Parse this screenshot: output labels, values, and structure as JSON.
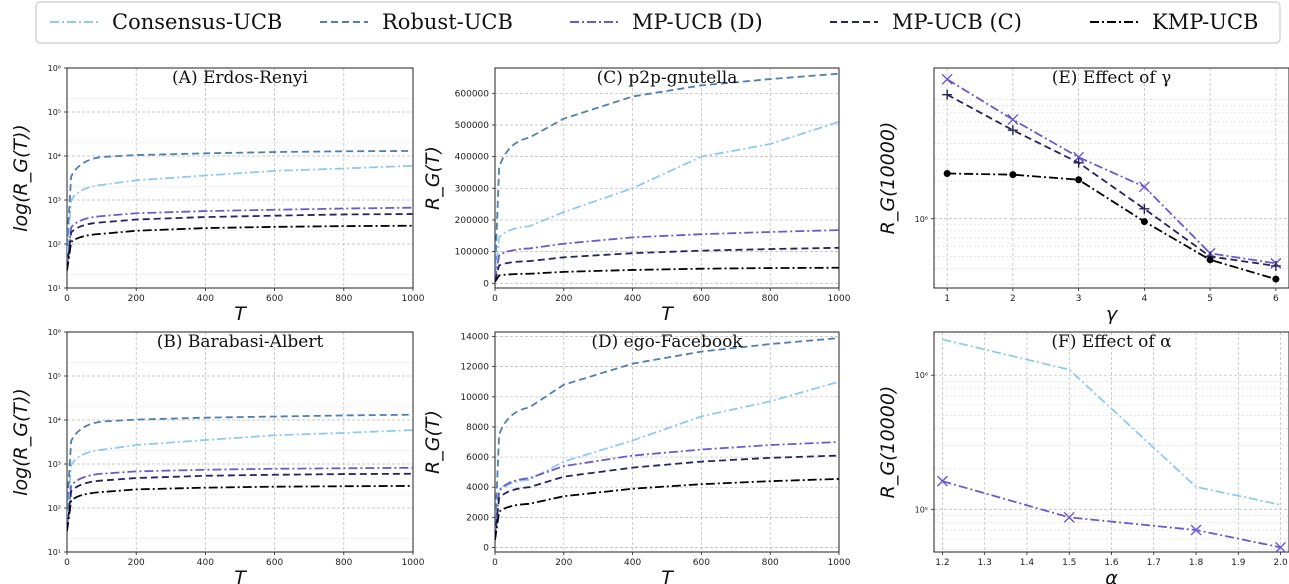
{
  "legend": [
    {
      "name": "Consensus-UCB",
      "color": "#8ecbf0",
      "dash": "dashdot"
    },
    {
      "name": "Robust-UCB",
      "color": "#4f7fae",
      "dash": "dashed"
    },
    {
      "name": "MP-UCB (D)",
      "color": "#6a5acd",
      "dash": "dashdot"
    },
    {
      "name": "MP-UCB (C)",
      "color": "#24245e",
      "dash": "dashed"
    },
    {
      "name": "KMP-UCB",
      "color": "#000000",
      "dash": "dashdot"
    }
  ],
  "chart_data": [
    {
      "id": "A",
      "type": "line",
      "title": "(A) Erdos-Renyi",
      "xlabel": "T",
      "ylabel": "log(R_G(T))",
      "yscale": "log",
      "xlim": [
        0,
        1000
      ],
      "ylim": [
        10,
        1000000
      ],
      "xticks": [
        "0",
        "200",
        "400",
        "600",
        "800",
        "1000"
      ],
      "yticks": [
        "10¹",
        "10²",
        "10³",
        "10⁴",
        "10⁵",
        "10⁶"
      ],
      "x": [
        0,
        100,
        200,
        400,
        600,
        800,
        1000
      ],
      "series": [
        {
          "name": "Consensus-UCB",
          "values": [
            60,
            2200,
            2800,
            3600,
            4600,
            5200,
            6000
          ]
        },
        {
          "name": "Robust-UCB",
          "values": [
            90,
            9500,
            10500,
            11500,
            12300,
            12800,
            13000
          ]
        },
        {
          "name": "MP-UCB (D)",
          "values": [
            30,
            430,
            500,
            560,
            600,
            640,
            670
          ]
        },
        {
          "name": "MP-UCB (C)",
          "values": [
            28,
            310,
            360,
            410,
            440,
            470,
            480
          ]
        },
        {
          "name": "KMP-UCB",
          "values": [
            25,
            170,
            200,
            230,
            245,
            255,
            260
          ]
        }
      ]
    },
    {
      "id": "B",
      "type": "line",
      "title": "(B) Barabasi-Albert",
      "xlabel": "T",
      "ylabel": "log(R_G(T))",
      "yscale": "log",
      "xlim": [
        0,
        1000
      ],
      "ylim": [
        10,
        1000000
      ],
      "xticks": [
        "0",
        "200",
        "400",
        "600",
        "800",
        "1000"
      ],
      "yticks": [
        "10¹",
        "10²",
        "10³",
        "10⁴",
        "10⁵",
        "10⁶"
      ],
      "x": [
        0,
        100,
        200,
        400,
        600,
        800,
        1000
      ],
      "series": [
        {
          "name": "Consensus-UCB",
          "values": [
            60,
            2100,
            2700,
            3500,
            4500,
            5100,
            5900
          ]
        },
        {
          "name": "Robust-UCB",
          "values": [
            90,
            9200,
            10200,
            11300,
            12000,
            12700,
            13200
          ]
        },
        {
          "name": "MP-UCB (D)",
          "values": [
            35,
            600,
            680,
            740,
            780,
            800,
            820
          ]
        },
        {
          "name": "MP-UCB (C)",
          "values": [
            32,
            420,
            480,
            540,
            570,
            590,
            600
          ]
        },
        {
          "name": "KMP-UCB",
          "values": [
            30,
            230,
            265,
            290,
            305,
            312,
            318
          ]
        }
      ]
    },
    {
      "id": "C",
      "type": "line",
      "title": "(C) p2p-gnutella",
      "xlabel": "T",
      "ylabel": "R_G(T)",
      "yscale": "linear",
      "xlim": [
        0,
        1000
      ],
      "ylim": [
        -15000,
        680000
      ],
      "xticks": [
        "0",
        "200",
        "400",
        "600",
        "800",
        "1000"
      ],
      "yticks": [
        "0",
        "100000",
        "200000",
        "300000",
        "400000",
        "500000",
        "600000"
      ],
      "x": [
        0,
        100,
        200,
        400,
        600,
        800,
        1000
      ],
      "series": [
        {
          "name": "Consensus-UCB",
          "values": [
            20000,
            180000,
            225000,
            300000,
            400000,
            440000,
            510000
          ]
        },
        {
          "name": "Robust-UCB",
          "values": [
            30000,
            460000,
            520000,
            590000,
            625000,
            645000,
            662000
          ]
        },
        {
          "name": "MP-UCB (D)",
          "values": [
            10000,
            110000,
            125000,
            145000,
            155000,
            162000,
            168000
          ]
        },
        {
          "name": "MP-UCB (C)",
          "values": [
            8000,
            70000,
            82000,
            95000,
            103000,
            108000,
            112000
          ]
        },
        {
          "name": "KMP-UCB",
          "values": [
            5000,
            30000,
            36000,
            42000,
            46000,
            48000,
            49000
          ]
        }
      ]
    },
    {
      "id": "D",
      "type": "line",
      "title": "(D) ego-Facebook",
      "xlabel": "T",
      "ylabel": "R_G(T)",
      "yscale": "linear",
      "xlim": [
        0,
        1000
      ],
      "ylim": [
        -300,
        14300
      ],
      "xticks": [
        "0",
        "200",
        "400",
        "600",
        "800",
        "1000"
      ],
      "yticks": [
        "0",
        "2000",
        "4000",
        "6000",
        "8000",
        "10000",
        "12000",
        "14000"
      ],
      "x": [
        0,
        100,
        200,
        400,
        600,
        800,
        1000
      ],
      "series": [
        {
          "name": "Consensus-UCB",
          "values": [
            800,
            4500,
            5700,
            7100,
            8700,
            9700,
            11000
          ]
        },
        {
          "name": "Robust-UCB",
          "values": [
            1000,
            9300,
            10800,
            12200,
            13000,
            13500,
            13900
          ]
        },
        {
          "name": "MP-UCB (D)",
          "values": [
            800,
            4600,
            5400,
            6100,
            6500,
            6800,
            7000
          ]
        },
        {
          "name": "MP-UCB (C)",
          "values": [
            700,
            4000,
            4700,
            5300,
            5700,
            5950,
            6100
          ]
        },
        {
          "name": "KMP-UCB",
          "values": [
            500,
            2900,
            3400,
            3900,
            4200,
            4400,
            4550
          ]
        }
      ]
    },
    {
      "id": "E",
      "type": "line",
      "title": "(E) Effect of γ",
      "xlabel": "γ",
      "ylabel": "R_G(10000)",
      "yscale": "log",
      "xlim": [
        0.8,
        6.2
      ],
      "ylim": [
        280000,
        16000000
      ],
      "xticks": [
        "1",
        "2",
        "3",
        "4",
        "5",
        "6"
      ],
      "yticks": [
        "10⁶"
      ],
      "x": [
        1,
        2,
        3,
        4,
        5,
        6
      ],
      "series": [
        {
          "name": "MP-UCB (D)",
          "marker": "x",
          "values": [
            13000000,
            6200000,
            3100000,
            1800000,
            530000,
            440000
          ]
        },
        {
          "name": "MP-UCB (C)",
          "marker": "+",
          "values": [
            9800000,
            5100000,
            2800000,
            1200000,
            500000,
            420000
          ]
        },
        {
          "name": "KMP-UCB",
          "marker": "o",
          "values": [
            2300000,
            2250000,
            2050000,
            950000,
            470000,
            330000
          ]
        }
      ]
    },
    {
      "id": "F",
      "type": "line",
      "title": "(F) Effect of α",
      "xlabel": "α",
      "ylabel": "R_G(10000)",
      "yscale": "log",
      "xlim": [
        1.18,
        2.02
      ],
      "ylim": [
        48000,
        2100000
      ],
      "xticks": [
        "1.2",
        "1.3",
        "1.4",
        "1.5",
        "1.6",
        "1.7",
        "1.8",
        "1.9",
        "2.0"
      ],
      "yticks": [
        "10⁵",
        "10⁶"
      ],
      "x": [
        1.2,
        1.5,
        1.8,
        2.0
      ],
      "series": [
        {
          "name": "Consensus-UCB",
          "marker": "",
          "values": [
            1850000,
            1100000,
            147000,
            108000
          ]
        },
        {
          "name": "MP-UCB (D)",
          "marker": "x",
          "values": [
            162000,
            87000,
            70000,
            52000
          ]
        }
      ]
    }
  ]
}
